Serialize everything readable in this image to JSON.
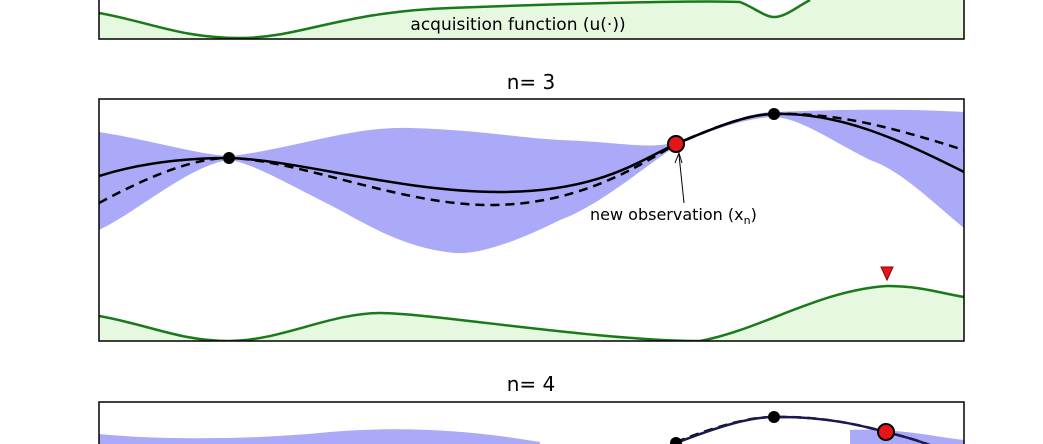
{
  "panels": [
    {
      "label": "acquisition function (u(·))"
    },
    {
      "title": "n= 3",
      "annotation": {
        "text": "new observation (x",
        "subscript": "n",
        "close": ")"
      }
    },
    {
      "title": "n= 4"
    }
  ]
}
